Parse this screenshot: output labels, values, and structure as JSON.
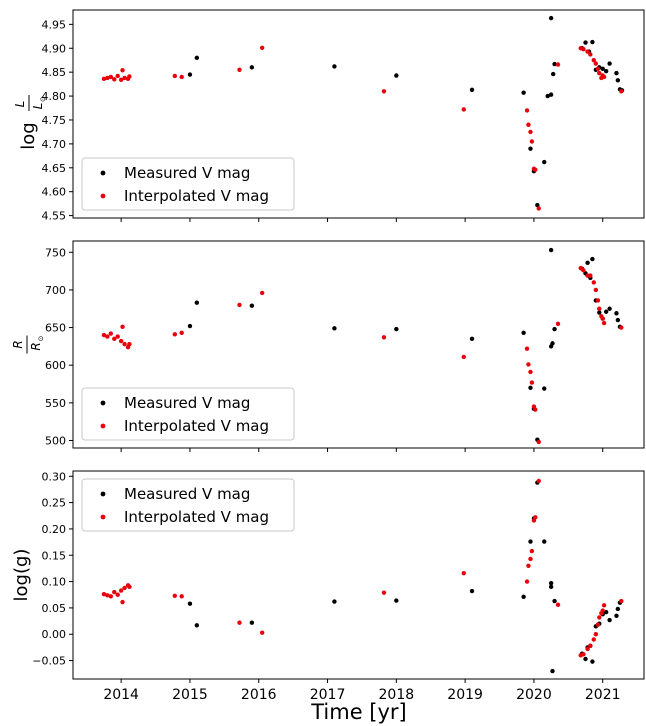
{
  "figure": {
    "xlabel": "Time [yr]",
    "x_ticks": [
      "2014",
      "2015",
      "2016",
      "2017",
      "2018",
      "2019",
      "2020",
      "2021"
    ],
    "colors": {
      "measured": "#000000",
      "interpolated": "#e8000b"
    }
  },
  "chart_data": [
    {
      "type": "scatter",
      "ylabel": "log L/L⊙",
      "ylabel_main": "log",
      "ylabel_num": "L",
      "ylabel_den": "L",
      "ylabel_sub": "⊙",
      "xlim": [
        2013.3,
        2021.6
      ],
      "ylim": [
        4.545,
        4.98
      ],
      "yticks": [
        "4.55",
        "4.60",
        "4.65",
        "4.70",
        "4.75",
        "4.80",
        "4.85",
        "4.90",
        "4.95"
      ],
      "ytick_values": [
        4.55,
        4.6,
        4.65,
        4.7,
        4.75,
        4.8,
        4.85,
        4.9,
        4.95
      ],
      "legend_position": "lower-left",
      "legend": [
        "Measured V mag",
        "Interpolated V mag"
      ],
      "series": [
        {
          "name": "Measured V mag",
          "x": [
            2015.0,
            2015.1,
            2015.9,
            2017.1,
            2018.0,
            2019.1,
            2019.85,
            2019.95,
            2020.0,
            2020.05,
            2020.15,
            2020.2,
            2020.25,
            2020.25,
            2020.28,
            2020.3,
            2020.7,
            2020.75,
            2020.8,
            2020.85,
            2020.9,
            2020.95,
            2021.0,
            2021.05,
            2021.1,
            2021.2,
            2021.22,
            2021.25,
            2021.28
          ],
          "y": [
            4.845,
            4.88,
            4.86,
            4.862,
            4.843,
            4.813,
            4.807,
            4.69,
            4.643,
            4.572,
            4.662,
            4.8,
            4.803,
            4.963,
            4.846,
            4.867,
            4.9,
            4.912,
            4.893,
            4.913,
            4.855,
            4.86,
            4.857,
            4.852,
            4.868,
            4.848,
            4.833,
            4.814,
            4.812
          ]
        },
        {
          "name": "Interpolated V mag",
          "x": [
            2013.75,
            2013.8,
            2013.85,
            2013.9,
            2013.95,
            2014.0,
            2014.05,
            2014.1,
            2014.12,
            2014.02,
            2014.78,
            2014.88,
            2015.72,
            2016.05,
            2017.82,
            2018.98,
            2019.9,
            2019.92,
            2019.95,
            2019.97,
            2020.0,
            2020.02,
            2020.07,
            2020.35,
            2020.68,
            2020.72,
            2020.78,
            2020.82,
            2020.87,
            2020.9,
            2020.93,
            2020.95,
            2020.98,
            2021.0,
            2021.02,
            2021.27
          ],
          "y": [
            4.836,
            4.838,
            4.84,
            4.835,
            4.842,
            4.834,
            4.838,
            4.836,
            4.841,
            4.854,
            4.842,
            4.84,
            4.855,
            4.901,
            4.81,
            4.772,
            4.77,
            4.74,
            4.725,
            4.705,
            4.648,
            4.646,
            4.565,
            4.866,
            4.9,
            4.898,
            4.893,
            4.887,
            4.875,
            4.868,
            4.857,
            4.848,
            4.838,
            4.843,
            4.84,
            4.81
          ]
        }
      ]
    },
    {
      "type": "scatter",
      "ylabel": "R/R⊙",
      "ylabel_num": "R",
      "ylabel_den": "R",
      "ylabel_sub": "⊙",
      "xlim": [
        2013.3,
        2021.6
      ],
      "ylim": [
        490,
        765
      ],
      "yticks": [
        "500",
        "550",
        "600",
        "650",
        "700",
        "750"
      ],
      "ytick_values": [
        500,
        550,
        600,
        650,
        700,
        750
      ],
      "legend_position": "lower-left",
      "legend": [
        "Measured V mag",
        "Interpolated V mag"
      ],
      "series": [
        {
          "name": "Measured V mag",
          "x": [
            2015.0,
            2015.1,
            2015.9,
            2017.1,
            2018.0,
            2019.1,
            2019.85,
            2019.95,
            2020.0,
            2020.05,
            2020.15,
            2020.25,
            2020.27,
            2020.3,
            2020.25,
            2020.7,
            2020.75,
            2020.78,
            2020.82,
            2020.85,
            2020.9,
            2020.95,
            2021.0,
            2021.05,
            2021.1,
            2021.2,
            2021.22,
            2021.25
          ],
          "y": [
            652,
            683,
            679,
            649,
            648,
            635,
            643,
            570,
            542,
            501,
            569,
            625,
            629,
            648,
            753,
            728,
            722,
            736,
            716,
            741,
            686,
            670,
            662,
            671,
            675,
            669,
            660,
            651
          ]
        },
        {
          "name": "Interpolated V mag",
          "x": [
            2013.75,
            2013.8,
            2013.85,
            2013.9,
            2013.95,
            2014.0,
            2014.05,
            2014.1,
            2014.12,
            2014.02,
            2014.78,
            2014.88,
            2015.72,
            2016.05,
            2017.82,
            2018.98,
            2019.9,
            2019.92,
            2019.95,
            2019.97,
            2020.0,
            2020.02,
            2020.07,
            2020.35,
            2020.68,
            2020.72,
            2020.78,
            2020.82,
            2020.87,
            2020.9,
            2020.93,
            2020.95,
            2020.98,
            2021.0,
            2021.02,
            2021.27
          ],
          "y": [
            640,
            638,
            642,
            635,
            638,
            632,
            628,
            624,
            628,
            651,
            641,
            643,
            680,
            696,
            637,
            611,
            622,
            601,
            591,
            577,
            545,
            541,
            498,
            655,
            729,
            726,
            719,
            719,
            710,
            700,
            686,
            675,
            665,
            662,
            656,
            650
          ]
        }
      ]
    },
    {
      "type": "scatter",
      "ylabel": "log(g)",
      "xlim": [
        2013.3,
        2021.6
      ],
      "ylim": [
        -0.085,
        0.31
      ],
      "yticks": [
        "−0.05",
        "0.00",
        "0.05",
        "0.10",
        "0.15",
        "0.20",
        "0.25",
        "0.30"
      ],
      "ytick_values": [
        -0.05,
        0.0,
        0.05,
        0.1,
        0.15,
        0.2,
        0.25,
        0.3
      ],
      "legend_position": "upper-left",
      "legend": [
        "Measured V mag",
        "Interpolated V mag"
      ],
      "series": [
        {
          "name": "Measured V mag",
          "x": [
            2015.0,
            2015.1,
            2015.9,
            2017.1,
            2018.0,
            2019.1,
            2019.85,
            2019.95,
            2020.0,
            2020.05,
            2020.15,
            2020.25,
            2020.25,
            2020.27,
            2020.3,
            2020.7,
            2020.75,
            2020.78,
            2020.82,
            2020.85,
            2020.9,
            2020.95,
            2021.0,
            2021.05,
            2021.1,
            2021.2,
            2021.22,
            2021.25
          ],
          "y": [
            0.058,
            0.017,
            0.022,
            0.062,
            0.064,
            0.082,
            0.071,
            0.176,
            0.22,
            0.288,
            0.176,
            0.09,
            0.097,
            -0.07,
            0.063,
            -0.037,
            -0.047,
            -0.025,
            -0.022,
            -0.052,
            0.015,
            0.02,
            0.038,
            0.042,
            0.027,
            0.035,
            0.048,
            0.06
          ]
        },
        {
          "name": "Interpolated V mag",
          "x": [
            2013.75,
            2013.8,
            2013.85,
            2013.9,
            2013.95,
            2014.0,
            2014.05,
            2014.1,
            2014.12,
            2014.02,
            2014.78,
            2014.88,
            2015.72,
            2016.05,
            2017.82,
            2018.98,
            2019.9,
            2019.92,
            2019.95,
            2019.97,
            2020.0,
            2020.02,
            2020.07,
            2020.35,
            2020.68,
            2020.72,
            2020.78,
            2020.82,
            2020.87,
            2020.9,
            2020.93,
            2020.95,
            2020.98,
            2021.0,
            2021.02,
            2021.27
          ],
          "y": [
            0.076,
            0.074,
            0.072,
            0.08,
            0.075,
            0.083,
            0.088,
            0.093,
            0.09,
            0.061,
            0.073,
            0.072,
            0.022,
            0.003,
            0.079,
            0.116,
            0.1,
            0.13,
            0.143,
            0.158,
            0.216,
            0.222,
            0.291,
            0.056,
            -0.04,
            -0.038,
            -0.028,
            -0.022,
            -0.01,
            0.0,
            0.018,
            0.032,
            0.04,
            0.045,
            0.055,
            0.063
          ]
        }
      ]
    }
  ]
}
